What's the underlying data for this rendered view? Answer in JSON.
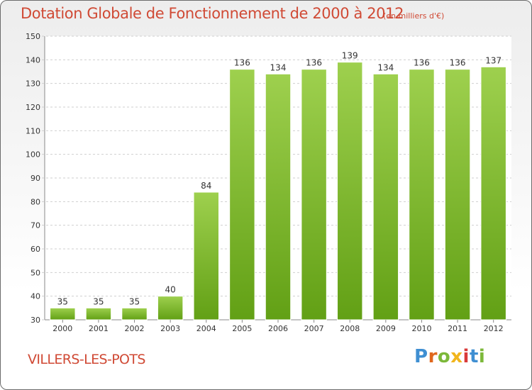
{
  "header": {
    "title": "Dotation Globale de Fonctionnement de 2000 à 2012",
    "unit": "(en milliers d'€)"
  },
  "footer": {
    "commune": "VILLERS-LES-POTS",
    "logo_letters": [
      "P",
      "r",
      "o",
      "x",
      "i",
      "t",
      "i"
    ]
  },
  "colors": {
    "bar_top": "#9ed04e",
    "bar_bottom": "#62a015",
    "title": "#d04a35",
    "grid": "#cfcfcf"
  },
  "chart_data": {
    "type": "bar",
    "categories": [
      "2000",
      "2001",
      "2002",
      "2003",
      "2004",
      "2005",
      "2006",
      "2007",
      "2008",
      "2009",
      "2010",
      "2011",
      "2012"
    ],
    "values": [
      35,
      35,
      35,
      40,
      84,
      136,
      134,
      136,
      139,
      134,
      136,
      136,
      137
    ],
    "data_labels": [
      "35",
      "35",
      "35",
      "40",
      "84",
      "136",
      "134",
      "136",
      "139",
      "134",
      "136",
      "136",
      "137"
    ],
    "ylim": [
      30,
      150
    ],
    "yticks": [
      30,
      40,
      50,
      60,
      70,
      80,
      90,
      100,
      110,
      120,
      130,
      140,
      150
    ],
    "grid": true,
    "legend": "none"
  }
}
